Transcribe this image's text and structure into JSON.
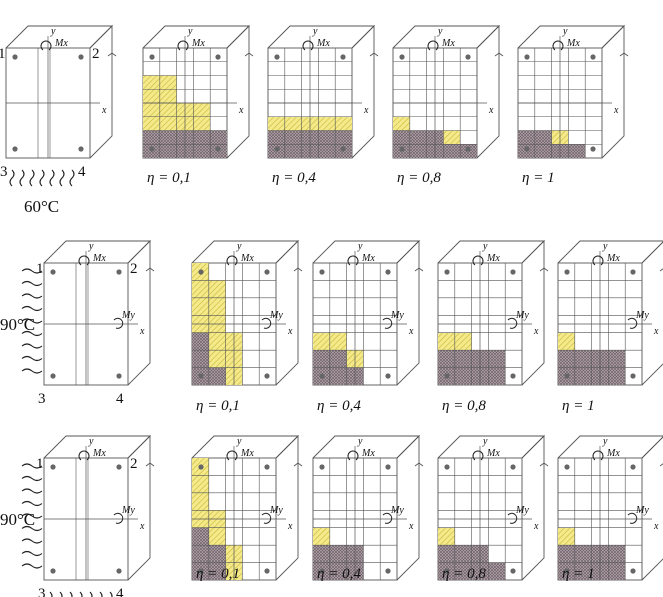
{
  "colors": {
    "yellow": "#f4ea8c",
    "yellow_hatch": "#c9b633",
    "gray": "#b9aab1",
    "gray_hatch": "#6e6168",
    "line": "#555555",
    "dot": "#666666"
  },
  "labels": {
    "temp_row1": "60°C",
    "temp_row2": "90°C",
    "temp_row3": "90°C",
    "corner1": "1",
    "corner2": "2",
    "corner3": "3",
    "corner4": "4",
    "axis_x": "x",
    "axis_y": "y",
    "moment_x": "Mx",
    "moment_y": "My",
    "eta_01": "η = 0,1",
    "eta_04": "η = 0,4",
    "eta_08": "η = 0,8",
    "eta_1": "η = 1"
  },
  "rows": [
    {
      "temp_key": "temp_row1",
      "fire_sides": [
        "bottom"
      ],
      "show_my": false,
      "panels": [
        {
          "eta": null,
          "cols": 0,
          "rows": 0,
          "yellow": [],
          "gray": []
        },
        {
          "eta": "eta_01",
          "cols": 5,
          "rows": 8,
          "yellow": [
            [
              0,
              2
            ],
            [
              1,
              2
            ],
            [
              0,
              3
            ],
            [
              1,
              3
            ],
            [
              0,
              4
            ],
            [
              1,
              4
            ],
            [
              2,
              4
            ],
            [
              3,
              4
            ],
            [
              0,
              5
            ],
            [
              1,
              5
            ],
            [
              2,
              5
            ],
            [
              3,
              5
            ]
          ],
          "gray": [
            [
              0,
              6
            ],
            [
              1,
              6
            ],
            [
              2,
              6
            ],
            [
              3,
              6
            ],
            [
              4,
              6
            ],
            [
              0,
              7
            ],
            [
              1,
              7
            ],
            [
              2,
              7
            ],
            [
              3,
              7
            ],
            [
              4,
              7
            ]
          ]
        },
        {
          "eta": "eta_04",
          "cols": 5,
          "rows": 8,
          "yellow": [
            [
              0,
              5
            ],
            [
              1,
              5
            ],
            [
              2,
              5
            ],
            [
              3,
              5
            ],
            [
              4,
              5
            ]
          ],
          "gray": [
            [
              0,
              6
            ],
            [
              1,
              6
            ],
            [
              2,
              6
            ],
            [
              3,
              6
            ],
            [
              4,
              6
            ],
            [
              0,
              7
            ],
            [
              1,
              7
            ],
            [
              2,
              7
            ],
            [
              3,
              7
            ],
            [
              4,
              7
            ]
          ]
        },
        {
          "eta": "eta_08",
          "cols": 5,
          "rows": 8,
          "yellow": [
            [
              0,
              5
            ],
            [
              3,
              6
            ]
          ],
          "gray": [
            [
              0,
              6
            ],
            [
              1,
              6
            ],
            [
              2,
              6
            ],
            [
              0,
              7
            ],
            [
              1,
              7
            ],
            [
              2,
              7
            ],
            [
              3,
              7
            ],
            [
              4,
              7
            ]
          ]
        },
        {
          "eta": "eta_1",
          "cols": 5,
          "rows": 8,
          "yellow": [
            [
              2,
              6
            ]
          ],
          "gray": [
            [
              0,
              6
            ],
            [
              1,
              6
            ],
            [
              0,
              7
            ],
            [
              1,
              7
            ],
            [
              2,
              7
            ],
            [
              3,
              7
            ]
          ]
        }
      ]
    },
    {
      "temp_key": "temp_row2",
      "fire_sides": [
        "left"
      ],
      "show_my": true,
      "panels": [
        {
          "eta": null,
          "cols": 0,
          "rows": 0,
          "yellow": [],
          "gray": []
        },
        {
          "eta": "eta_01",
          "cols": 5,
          "rows": 7,
          "yellow": [
            [
              0,
              0
            ],
            [
              0,
              1
            ],
            [
              1,
              1
            ],
            [
              0,
              2
            ],
            [
              1,
              2
            ],
            [
              0,
              3
            ],
            [
              1,
              3
            ],
            [
              1,
              4
            ],
            [
              1,
              5
            ],
            [
              2,
              4
            ],
            [
              2,
              5
            ],
            [
              2,
              6
            ]
          ],
          "gray": [
            [
              0,
              4
            ],
            [
              0,
              5
            ],
            [
              0,
              6
            ],
            [
              1,
              6
            ]
          ]
        },
        {
          "eta": "eta_04",
          "cols": 5,
          "rows": 7,
          "yellow": [
            [
              0,
              4
            ],
            [
              1,
              4
            ],
            [
              2,
              5
            ]
          ],
          "gray": [
            [
              0,
              5
            ],
            [
              1,
              5
            ],
            [
              0,
              6
            ],
            [
              1,
              6
            ],
            [
              2,
              6
            ]
          ]
        },
        {
          "eta": "eta_08",
          "cols": 5,
          "rows": 7,
          "yellow": [
            [
              0,
              4
            ],
            [
              1,
              4
            ]
          ],
          "gray": [
            [
              0,
              5
            ],
            [
              1,
              5
            ],
            [
              2,
              5
            ],
            [
              3,
              5
            ],
            [
              0,
              6
            ],
            [
              1,
              6
            ],
            [
              2,
              6
            ],
            [
              3,
              6
            ]
          ]
        },
        {
          "eta": "eta_1",
          "cols": 5,
          "rows": 7,
          "yellow": [
            [
              0,
              4
            ]
          ],
          "gray": [
            [
              0,
              5
            ],
            [
              1,
              5
            ],
            [
              2,
              5
            ],
            [
              3,
              5
            ],
            [
              0,
              6
            ],
            [
              1,
              6
            ],
            [
              2,
              6
            ],
            [
              3,
              6
            ]
          ]
        }
      ]
    },
    {
      "temp_key": "temp_row3",
      "fire_sides": [
        "left",
        "bottom"
      ],
      "show_my": true,
      "panels": [
        {
          "eta": null,
          "cols": 0,
          "rows": 0,
          "yellow": [],
          "gray": []
        },
        {
          "eta": "eta_01",
          "cols": 5,
          "rows": 7,
          "yellow": [
            [
              0,
              0
            ],
            [
              0,
              1
            ],
            [
              0,
              2
            ],
            [
              0,
              3
            ],
            [
              1,
              3
            ],
            [
              1,
              4
            ],
            [
              2,
              5
            ],
            [
              2,
              6
            ]
          ],
          "gray": [
            [
              0,
              4
            ],
            [
              0,
              5
            ],
            [
              1,
              5
            ],
            [
              0,
              6
            ],
            [
              1,
              6
            ]
          ]
        },
        {
          "eta": "eta_04",
          "cols": 5,
          "rows": 7,
          "yellow": [
            [
              0,
              4
            ]
          ],
          "gray": [
            [
              0,
              5
            ],
            [
              1,
              5
            ],
            [
              2,
              5
            ],
            [
              0,
              6
            ],
            [
              1,
              6
            ],
            [
              2,
              6
            ]
          ]
        },
        {
          "eta": "eta_08",
          "cols": 5,
          "rows": 7,
          "yellow": [
            [
              0,
              4
            ]
          ],
          "gray": [
            [
              0,
              5
            ],
            [
              1,
              5
            ],
            [
              2,
              5
            ],
            [
              0,
              6
            ],
            [
              1,
              6
            ],
            [
              2,
              6
            ],
            [
              3,
              6
            ]
          ]
        },
        {
          "eta": "eta_1",
          "cols": 5,
          "rows": 7,
          "yellow": [
            [
              0,
              4
            ]
          ],
          "gray": [
            [
              0,
              5
            ],
            [
              1,
              5
            ],
            [
              2,
              5
            ],
            [
              3,
              5
            ],
            [
              0,
              6
            ],
            [
              1,
              6
            ],
            [
              2,
              6
            ],
            [
              3,
              6
            ]
          ]
        }
      ]
    }
  ]
}
